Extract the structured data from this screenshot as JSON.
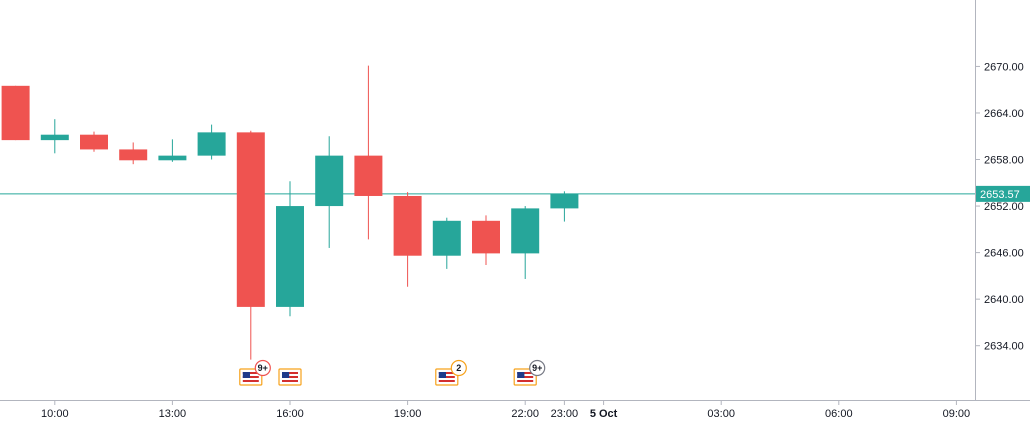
{
  "chart_data": {
    "type": "candlestick",
    "ylim": [
      2627.0,
      2676.5
    ],
    "y_ticks": [
      "2670.00",
      "2664.00",
      "2658.00",
      "2652.00",
      "2646.00",
      "2640.00",
      "2634.00"
    ],
    "y_tick_values": [
      2670,
      2664,
      2658,
      2652,
      2646,
      2640,
      2634
    ],
    "x_time_labels": [
      {
        "label": "10:00",
        "slot": 1
      },
      {
        "label": "13:00",
        "slot": 4
      },
      {
        "label": "16:00",
        "slot": 7
      },
      {
        "label": "19:00",
        "slot": 10
      },
      {
        "label": "22:00",
        "slot": 13
      },
      {
        "label": "23:00",
        "slot": 14
      },
      {
        "label": "5 Oct",
        "slot": 15,
        "bold": true
      },
      {
        "label": "03:00",
        "slot": 18
      },
      {
        "label": "06:00",
        "slot": 21
      },
      {
        "label": "09:00",
        "slot": 24
      }
    ],
    "candles": [
      {
        "slot": 0,
        "open": 2667.5,
        "high": 2667.5,
        "low": 2660.5,
        "close": 2660.5
      },
      {
        "slot": 1,
        "open": 2660.5,
        "high": 2663.2,
        "low": 2658.8,
        "close": 2661.2
      },
      {
        "slot": 2,
        "open": 2661.2,
        "high": 2661.6,
        "low": 2659.0,
        "close": 2659.3
      },
      {
        "slot": 3,
        "open": 2659.3,
        "high": 2660.2,
        "low": 2657.4,
        "close": 2657.9
      },
      {
        "slot": 4,
        "open": 2657.9,
        "high": 2660.6,
        "low": 2657.7,
        "close": 2658.5
      },
      {
        "slot": 5,
        "open": 2658.5,
        "high": 2662.5,
        "low": 2658.0,
        "close": 2661.5
      },
      {
        "slot": 6,
        "open": 2661.5,
        "high": 2661.7,
        "low": 2632.2,
        "close": 2639.0
      },
      {
        "slot": 7,
        "open": 2639.0,
        "high": 2655.2,
        "low": 2637.8,
        "close": 2652.0
      },
      {
        "slot": 8,
        "open": 2652.0,
        "high": 2661.0,
        "low": 2646.6,
        "close": 2658.5
      },
      {
        "slot": 9,
        "open": 2658.5,
        "high": 2670.1,
        "low": 2647.7,
        "close": 2653.3
      },
      {
        "slot": 10,
        "open": 2653.3,
        "high": 2653.8,
        "low": 2641.6,
        "close": 2645.6
      },
      {
        "slot": 11,
        "open": 2645.6,
        "high": 2650.5,
        "low": 2643.9,
        "close": 2650.1
      },
      {
        "slot": 12,
        "open": 2650.1,
        "high": 2650.8,
        "low": 2644.4,
        "close": 2645.9
      },
      {
        "slot": 13,
        "open": 2645.9,
        "high": 2652.0,
        "low": 2642.6,
        "close": 2651.7
      },
      {
        "slot": 14,
        "open": 2651.7,
        "high": 2653.9,
        "low": 2650.0,
        "close": 2653.6
      }
    ],
    "last_price": {
      "value": 2653.57,
      "label": "2653.57"
    },
    "events": [
      {
        "slot": 6,
        "country": "us-flag-icon",
        "badge": "9+",
        "badge_style": "red"
      },
      {
        "slot": 7,
        "country": "us-flag-icon",
        "badge": ""
      },
      {
        "slot": 11,
        "country": "us-flag-icon",
        "badge": "2",
        "badge_style": "orange"
      },
      {
        "slot": 13,
        "country": "us-flag-icon",
        "badge": "9+",
        "badge_style": "gray"
      }
    ],
    "colors": {
      "up": "#26a69a",
      "down": "#ef5350",
      "last_price_line": "#26a69a",
      "axis_line": "#b2b5be",
      "text": "#131722",
      "badge_red": "#ef5350",
      "badge_orange": "#f7a21b",
      "badge_gray": "#787b86"
    }
  }
}
